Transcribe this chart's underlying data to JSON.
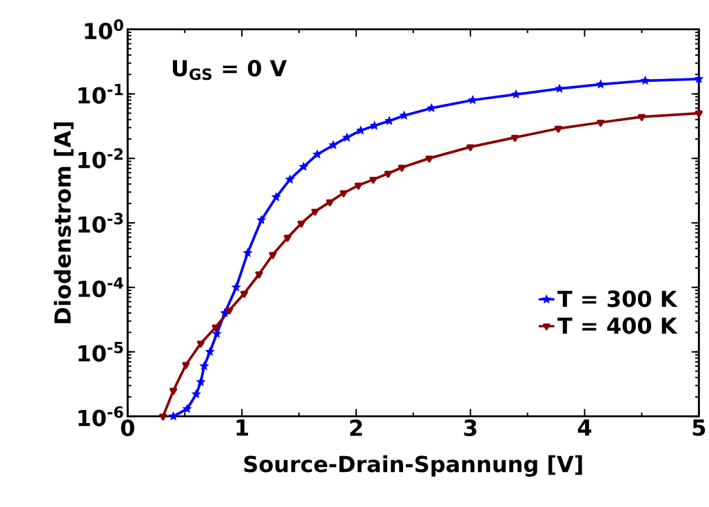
{
  "chart_data": {
    "type": "line",
    "xlabel": "Source-Drain-Spannung [V]",
    "ylabel": "Diodenstrom [A]",
    "annotations": [
      "U$_{GS}$ = 0 V"
    ],
    "log": "y",
    "legend": "bottom right",
    "line_style": "solid",
    "xlim": [
      0,
      5
    ],
    "ylim": [
      1e-06,
      1
    ],
    "xticks": [
      0,
      1,
      2,
      3,
      4,
      5
    ],
    "yticks": [
      {
        "value": 1e-06,
        "label": "10$^{-6}$"
      },
      {
        "value": 1e-05,
        "label": "10$^{-5}$"
      },
      {
        "value": 0.0001,
        "label": "10$^{-4}$"
      },
      {
        "value": 0.001,
        "label": "10$^{-3}$"
      },
      {
        "value": 0.01,
        "label": "10$^{-2}$"
      },
      {
        "value": 0.1,
        "label": "10$^{-1}$"
      },
      {
        "value": 1,
        "label": "10$^{0}$"
      }
    ],
    "series": [
      {
        "name": "T = 300 K",
        "color": "#0000ff",
        "marker": "star",
        "x": [
          0.4,
          0.52,
          0.6,
          0.64,
          0.67,
          0.72,
          0.78,
          0.85,
          0.95,
          1.05,
          1.17,
          1.3,
          1.42,
          1.54,
          1.66,
          1.8,
          1.92,
          2.04,
          2.16,
          2.29,
          2.42,
          2.66,
          3.02,
          3.4,
          3.78,
          4.14,
          4.53,
          5.0
        ],
        "values": [
          1e-06,
          1.3e-06,
          2.2e-06,
          3.4e-06,
          6e-06,
          1e-05,
          1.9e-05,
          4e-05,
          0.0001,
          0.00034,
          0.0011,
          0.0025,
          0.0047,
          0.0074,
          0.0115,
          0.016,
          0.021,
          0.027,
          0.032,
          0.038,
          0.046,
          0.06,
          0.08,
          0.098,
          0.12,
          0.14,
          0.16,
          0.17
        ]
      },
      {
        "name": "T = 400 K",
        "color": "#8b0000",
        "marker": "triangle",
        "x": [
          0.31,
          0.4,
          0.51,
          0.64,
          0.77,
          0.89,
          1.02,
          1.15,
          1.27,
          1.4,
          1.52,
          1.64,
          1.77,
          1.89,
          2.02,
          2.15,
          2.28,
          2.4,
          2.64,
          3.0,
          3.39,
          3.77,
          4.14,
          4.5,
          5.0
        ],
        "values": [
          1e-06,
          2.5e-06,
          6.3e-06,
          1.35e-05,
          2.4e-05,
          4.4e-05,
          8e-05,
          0.00016,
          0.00032,
          0.00059,
          0.00098,
          0.0015,
          0.0021,
          0.0029,
          0.0038,
          0.0047,
          0.0058,
          0.0072,
          0.01,
          0.015,
          0.021,
          0.029,
          0.036,
          0.044,
          0.05
        ]
      }
    ]
  }
}
